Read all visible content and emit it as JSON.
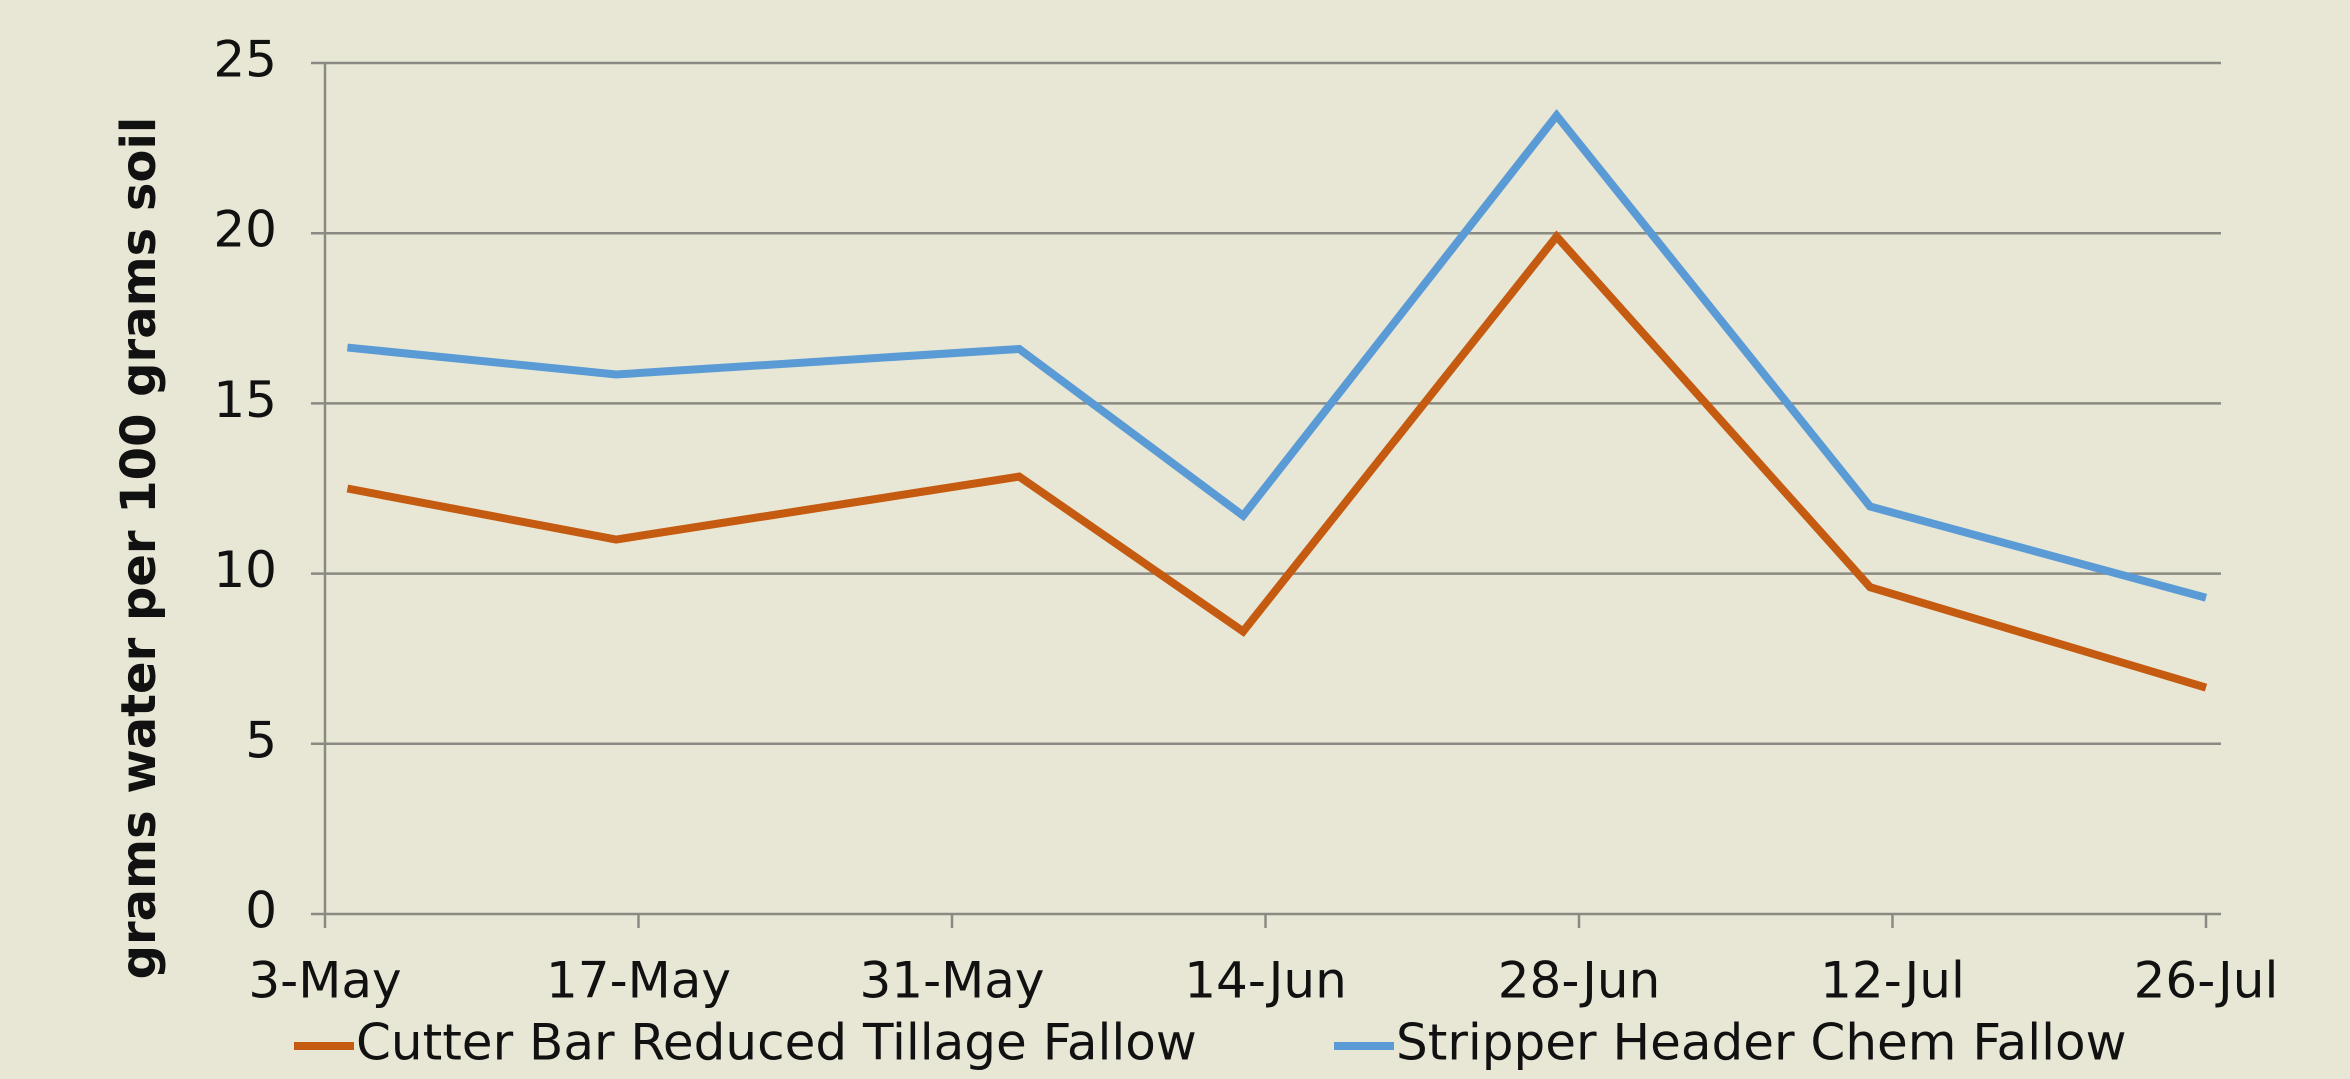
{
  "chart_data": {
    "type": "line",
    "y_label": "grams water per 100 grams soil",
    "x": [
      124,
      136,
      154,
      164,
      178,
      192,
      207
    ],
    "series": [
      {
        "name": "Cutter Bar Reduced Tillage Fallow",
        "color": "#c55a11",
        "values": [
          12.5,
          11.0,
          12.85,
          8.3,
          19.9,
          9.6,
          6.65
        ]
      },
      {
        "name": "Stripper Header Chem Fallow",
        "color": "#5b9bd5",
        "values": [
          16.64,
          15.85,
          16.6,
          11.7,
          23.46,
          11.97,
          9.29
        ]
      }
    ],
    "xlim": [
      123,
      207
    ],
    "xticks": [
      {
        "value": 123,
        "label": "3-May"
      },
      {
        "value": 137,
        "label": "17-May"
      },
      {
        "value": 151,
        "label": "31-May"
      },
      {
        "value": 165,
        "label": "14-Jun"
      },
      {
        "value": 179,
        "label": "28-Jun"
      },
      {
        "value": 193,
        "label": "12-Jul"
      },
      {
        "value": 207,
        "label": "26-Jul"
      }
    ],
    "ylim": [
      0,
      25
    ],
    "yticks": [
      0,
      5,
      10,
      15,
      20,
      25
    ],
    "grid": true,
    "legend": "bottom"
  }
}
